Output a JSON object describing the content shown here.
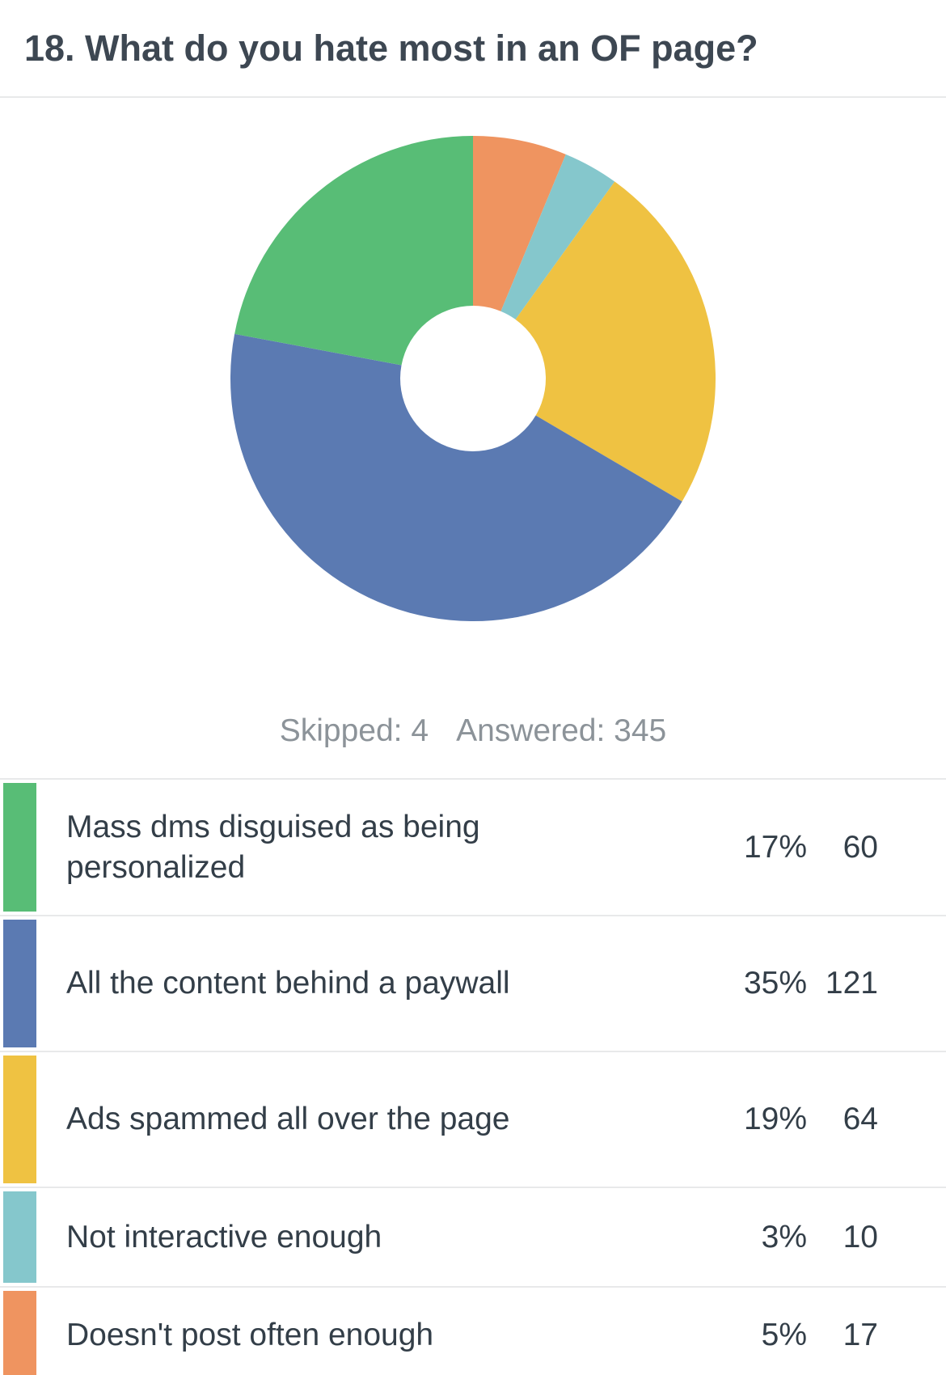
{
  "question": {
    "title": "18. What do you hate most in an OF page?"
  },
  "summary": {
    "skipped": "Skipped: 4",
    "answered": "Answered: 345"
  },
  "chart_data": {
    "type": "pie",
    "donut": true,
    "categories": [
      "Mass dms disguised as being personalized",
      "All the content behind a paywall",
      "Ads spammed all over the page",
      "Not interactive enough",
      "Doesn't post often enough"
    ],
    "values": [
      60,
      121,
      64,
      10,
      17
    ],
    "percent_labels": [
      "17%",
      "35%",
      "19%",
      "3%",
      "5%"
    ],
    "count_labels": [
      "60",
      "121",
      "64",
      "10",
      "17"
    ],
    "colors": [
      "#58bd76",
      "#5b7ab2",
      "#efc242",
      "#85c7cc",
      "#ef9460"
    ],
    "legend": "table-below"
  }
}
